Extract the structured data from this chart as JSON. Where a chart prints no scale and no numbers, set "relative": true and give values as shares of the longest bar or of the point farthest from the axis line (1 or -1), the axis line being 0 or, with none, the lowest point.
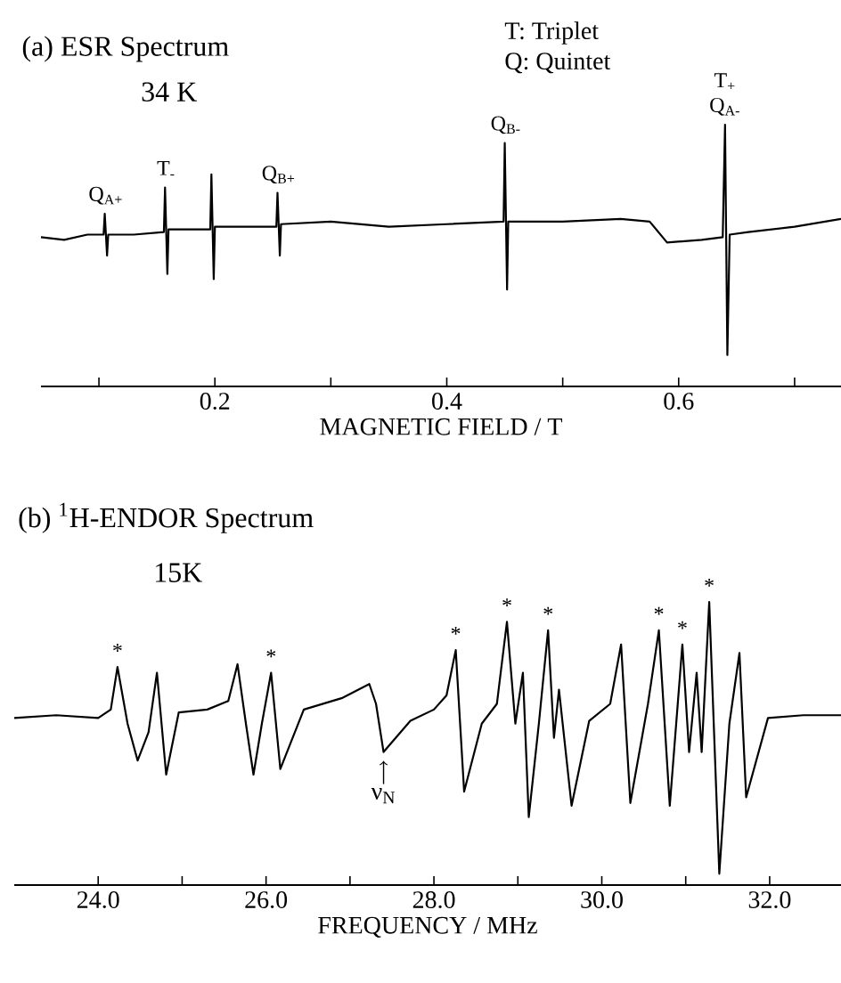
{
  "chart_data": [
    {
      "type": "line",
      "relative": true,
      "title": "(a) ESR Spectrum",
      "subtitle": "34 K",
      "xlabel": "MAGNETIC FIELD / T",
      "xlim": [
        0.05,
        0.74
      ],
      "xticks": [
        {
          "value": 0.1,
          "label": null
        },
        0.2,
        {
          "value": 0.3,
          "label": null
        },
        0.4,
        {
          "value": 0.5,
          "label": null
        },
        0.6,
        {
          "value": 0.7,
          "label": null
        }
      ],
      "annotations": [
        "T: Triplet",
        "Q: Quintet",
        {
          "text": "Q$_{A+}$",
          "x": 0.106,
          "y": 0.66
        },
        {
          "text": "T$_{-}$",
          "x": 0.158,
          "y": 0.76
        },
        {
          "text": "Q$_{B+}$",
          "x": 0.255,
          "y": 0.74
        },
        {
          "text": "Q$_{B-}$",
          "x": 0.451,
          "y": 0.93
        },
        {
          "text": "Q$_{A-}$",
          "x": 0.64,
          "y": 1
        },
        {
          "text": "T$_{+}$",
          "x": 0.64,
          "y": 1
        }
      ],
      "x": [
        0.05,
        0.07,
        0.09,
        0.104,
        0.105,
        0.107,
        0.108,
        0.13,
        0.156,
        0.157,
        0.159,
        0.16,
        0.18,
        0.196,
        0.197,
        0.199,
        0.2,
        0.23,
        0.253,
        0.254,
        0.256,
        0.257,
        0.3,
        0.35,
        0.4,
        0.449,
        0.45,
        0.452,
        0.453,
        0.5,
        0.55,
        0.575,
        0.59,
        0.62,
        0.638,
        0.64,
        0.642,
        0.644,
        0.66,
        0.7,
        0.74
      ],
      "series": [
        {
          "color": "#000000",
          "values": [
            0.57,
            0.56,
            0.58,
            0.58,
            0.66,
            0.5,
            0.58,
            0.58,
            0.59,
            0.76,
            0.43,
            0.6,
            0.6,
            0.6,
            0.81,
            0.41,
            0.61,
            0.61,
            0.61,
            0.74,
            0.5,
            0.62,
            0.63,
            0.61,
            0.62,
            0.63,
            0.93,
            0.37,
            0.63,
            0.63,
            0.64,
            0.63,
            0.55,
            0.56,
            0.57,
            1,
            0.12,
            0.58,
            0.59,
            0.61,
            0.64
          ]
        }
      ]
    },
    {
      "type": "line",
      "relative": true,
      "title": "(b) $^{1}$H-ENDOR Spectrum",
      "subtitle": "15K",
      "xlabel": "FREQUENCY / MHz",
      "xlim": [
        23.0,
        32.85
      ],
      "xticks": [
        {
          "value": 24,
          "label": "24.0"
        },
        {
          "value": 25,
          "label": null
        },
        {
          "value": 26,
          "label": "26.0"
        },
        {
          "value": 27,
          "label": null
        },
        {
          "value": 28,
          "label": "28.0"
        },
        {
          "value": 29,
          "label": null
        },
        {
          "value": 30,
          "label": "30.0"
        },
        {
          "value": 31,
          "label": null
        },
        {
          "value": 32,
          "label": "32.0"
        }
      ],
      "annotations": [
        {
          "text": "*",
          "x": 24.23,
          "y": 0.77
        },
        {
          "text": "*",
          "x": 26.06,
          "y": 0.75
        },
        {
          "text": "*",
          "x": 28.26,
          "y": 0.83
        },
        {
          "text": "*",
          "x": 28.87,
          "y": 0.93
        },
        {
          "text": "*",
          "x": 29.36,
          "y": 0.9
        },
        {
          "text": "*",
          "x": 30.68,
          "y": 0.9
        },
        {
          "text": "*",
          "x": 30.96,
          "y": 0.85
        },
        {
          "text": "*",
          "x": 31.28,
          "y": 1
        },
        {
          "text": "ν$_{N}$",
          "x": 27.4,
          "y": 0.47
        }
      ],
      "x": [
        23.0,
        23.5,
        24.0,
        24.15,
        24.23,
        24.35,
        24.47,
        24.6,
        24.7,
        24.81,
        24.96,
        25.3,
        25.55,
        25.66,
        25.76,
        25.85,
        25.95,
        26.06,
        26.17,
        26.45,
        26.9,
        27.23,
        27.31,
        27.4,
        27.72,
        28.0,
        28.15,
        28.26,
        28.36,
        28.57,
        28.75,
        28.87,
        28.97,
        29.06,
        29.13,
        29.25,
        29.36,
        29.43,
        29.49,
        29.64,
        29.85,
        30.1,
        30.23,
        30.34,
        30.55,
        30.68,
        30.81,
        30.96,
        31.04,
        31.13,
        31.19,
        31.28,
        31.4,
        31.52,
        31.64,
        31.72,
        31.98,
        32.4,
        32.85
      ],
      "series": [
        {
          "color": "#000000",
          "values": [
            0.59,
            0.6,
            0.59,
            0.62,
            0.77,
            0.57,
            0.44,
            0.54,
            0.75,
            0.39,
            0.61,
            0.62,
            0.65,
            0.78,
            0.57,
            0.39,
            0.57,
            0.75,
            0.41,
            0.62,
            0.66,
            0.71,
            0.64,
            0.47,
            0.58,
            0.62,
            0.67,
            0.83,
            0.33,
            0.57,
            0.64,
            0.93,
            0.57,
            0.75,
            0.24,
            0.57,
            0.9,
            0.52,
            0.69,
            0.28,
            0.58,
            0.64,
            0.85,
            0.29,
            0.64,
            0.9,
            0.28,
            0.85,
            0.47,
            0.75,
            0.47,
            1,
            0.04,
            0.57,
            0.82,
            0.31,
            0.59,
            0.6,
            0.6
          ]
        }
      ]
    }
  ]
}
